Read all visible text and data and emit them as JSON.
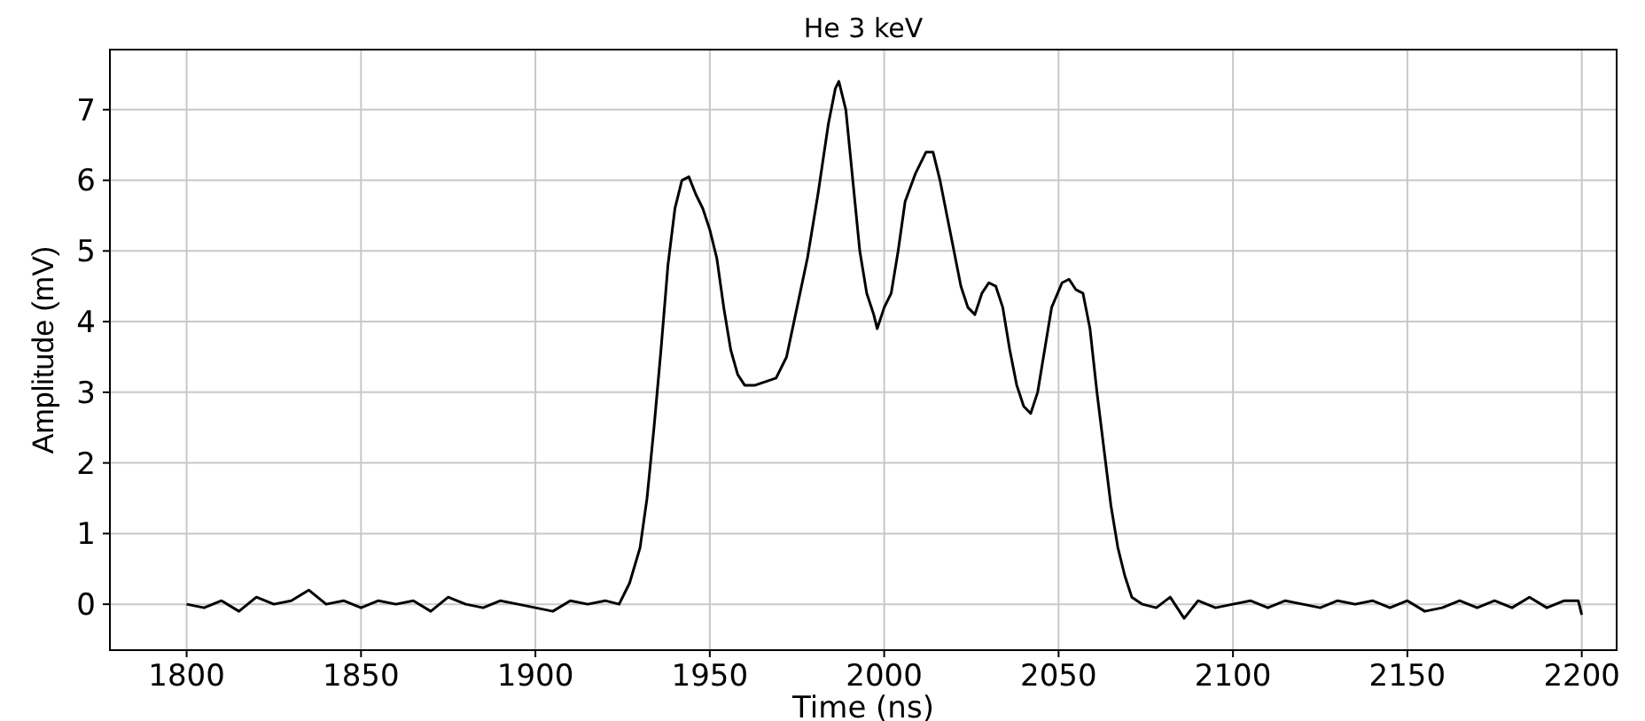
{
  "chart_data": {
    "type": "line",
    "title": "He 3 keV",
    "xlabel": "Time (ns)",
    "ylabel": "Amplitude (mV)",
    "xlim": [
      1778,
      2210
    ],
    "ylim": [
      -0.65,
      7.85
    ],
    "xticks": [
      1800,
      1850,
      1900,
      1950,
      2000,
      2050,
      2100,
      2150,
      2200
    ],
    "yticks": [
      0,
      1,
      2,
      3,
      4,
      5,
      6,
      7
    ],
    "grid": true,
    "marker": "none",
    "line_style": "solid",
    "series": [
      {
        "color": "#000000",
        "x": [
          1800,
          1805,
          1810,
          1815,
          1820,
          1825,
          1830,
          1835,
          1840,
          1845,
          1850,
          1855,
          1860,
          1865,
          1870,
          1875,
          1880,
          1885,
          1890,
          1895,
          1900,
          1905,
          1910,
          1915,
          1920,
          1924,
          1927,
          1930,
          1932,
          1934,
          1936,
          1938,
          1940,
          1942,
          1944,
          1946,
          1948,
          1950,
          1952,
          1954,
          1956,
          1958,
          1960,
          1963,
          1966,
          1969,
          1972,
          1975,
          1978,
          1981,
          1984,
          1986,
          1987,
          1989,
          1991,
          1993,
          1995,
          1997,
          1998,
          2000,
          2002,
          2004,
          2006,
          2009,
          2012,
          2014,
          2016,
          2018,
          2020,
          2022,
          2024,
          2026,
          2028,
          2030,
          2032,
          2034,
          2036,
          2038,
          2040,
          2042,
          2044,
          2046,
          2048,
          2051,
          2053,
          2055,
          2057,
          2059,
          2061,
          2063,
          2065,
          2067,
          2069,
          2071,
          2074,
          2078,
          2082,
          2086,
          2090,
          2095,
          2100,
          2105,
          2110,
          2115,
          2120,
          2125,
          2130,
          2135,
          2140,
          2145,
          2150,
          2155,
          2160,
          2165,
          2170,
          2175,
          2180,
          2185,
          2190,
          2195,
          2199,
          2200
        ],
        "values": [
          0,
          -0.05,
          0.05,
          -0.1,
          0.1,
          0,
          0.05,
          0.2,
          0,
          0.05,
          -0.05,
          0.05,
          0,
          0.05,
          -0.1,
          0.1,
          0,
          -0.05,
          0.05,
          0,
          -0.05,
          -0.1,
          0.05,
          0,
          0.05,
          0,
          0.3,
          0.8,
          1.5,
          2.5,
          3.6,
          4.8,
          5.6,
          6.0,
          6.05,
          5.8,
          5.6,
          5.3,
          4.9,
          4.2,
          3.6,
          3.25,
          3.1,
          3.1,
          3.15,
          3.2,
          3.5,
          4.2,
          4.9,
          5.8,
          6.8,
          7.3,
          7.4,
          7.0,
          6.0,
          5.0,
          4.4,
          4.1,
          3.9,
          4.2,
          4.4,
          5.0,
          5.7,
          6.1,
          6.4,
          6.4,
          6.0,
          5.5,
          5.0,
          4.5,
          4.2,
          4.1,
          4.4,
          4.55,
          4.5,
          4.2,
          3.6,
          3.1,
          2.8,
          2.7,
          3.0,
          3.6,
          4.2,
          4.55,
          4.6,
          4.45,
          4.4,
          3.9,
          3.0,
          2.2,
          1.4,
          0.8,
          0.4,
          0.1,
          0,
          -0.05,
          0.1,
          -0.2,
          0.05,
          -0.05,
          0,
          0.05,
          -0.05,
          0.05,
          0,
          -0.05,
          0.05,
          0,
          0.05,
          -0.05,
          0.05,
          -0.1,
          -0.05,
          0.05,
          -0.05,
          0.05,
          -0.05,
          0.1,
          -0.05,
          0.05,
          0.05,
          -0.15
        ]
      }
    ]
  }
}
